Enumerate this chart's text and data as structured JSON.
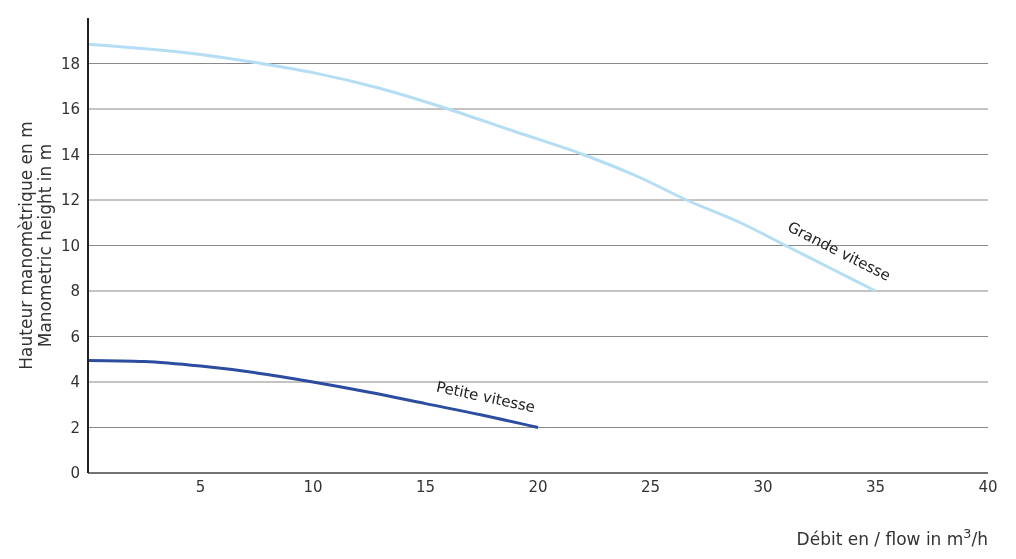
{
  "chart_data": {
    "type": "line",
    "xlabel": "Débit en / flow in m$^{3}$/h",
    "ylabel": "Hauteur manomètrique en m\nManometric height in m",
    "xlim": [
      0,
      40
    ],
    "xticks": [
      5,
      10,
      15,
      20,
      25,
      30,
      35,
      40
    ],
    "ylim": [
      0,
      20
    ],
    "yticks": [
      0,
      2,
      4,
      6,
      8,
      10,
      12,
      14,
      16,
      18
    ],
    "grid": "y",
    "marker": "none",
    "line_style": "solid",
    "series": [
      {
        "name": "Grande vitesse",
        "color": "#b5def5",
        "x": [
          0,
          5,
          7.7,
          10,
          13,
          16,
          19,
          22,
          24.5,
          26.6,
          29,
          31,
          33,
          35
        ],
        "values": [
          18.85,
          18.4,
          18,
          17.6,
          16.9,
          16,
          15,
          14,
          13,
          12,
          11,
          10,
          9,
          8
        ]
      },
      {
        "name": "Petite vitesse",
        "color": "#2b4c9f",
        "x": [
          0,
          2.5,
          5,
          7.5,
          10,
          12.5,
          15,
          17.5,
          20
        ],
        "values": [
          4.95,
          4.9,
          4.7,
          4.4,
          4,
          3.55,
          3.05,
          2.55,
          2
        ]
      }
    ]
  }
}
